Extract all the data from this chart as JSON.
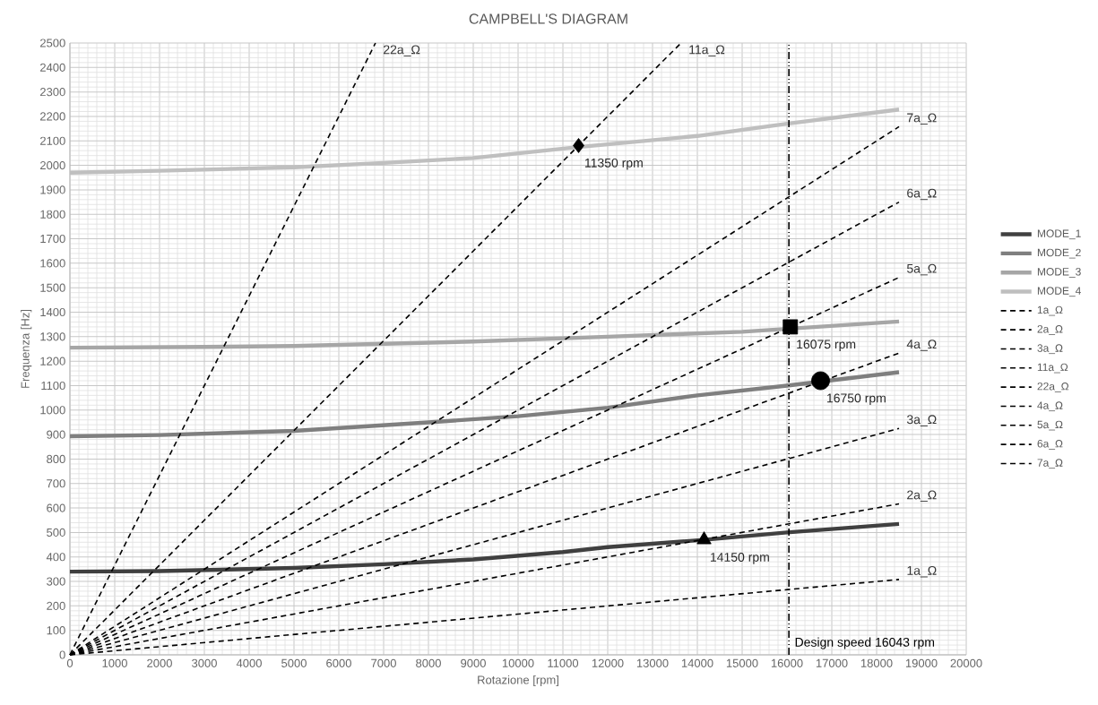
{
  "chart_data": {
    "type": "line",
    "title": "CAMPBELL'S DIAGRAM",
    "xlabel": "Rotazione [rpm]",
    "ylabel": "Frequenza [Hz]",
    "xlim": [
      0,
      20000
    ],
    "ylim": [
      0,
      2500
    ],
    "xticks": [
      0,
      1000,
      2000,
      3000,
      4000,
      5000,
      6000,
      7000,
      8000,
      9000,
      10000,
      11000,
      12000,
      13000,
      14000,
      15000,
      16000,
      17000,
      18000,
      19000,
      20000
    ],
    "yticks": [
      0,
      100,
      200,
      300,
      400,
      500,
      600,
      700,
      800,
      900,
      1000,
      1100,
      1200,
      1300,
      1400,
      1500,
      1600,
      1700,
      1800,
      1900,
      2000,
      2100,
      2200,
      2300,
      2400,
      2500
    ],
    "grid": true,
    "legend": "right",
    "series": [
      {
        "name": "MODE_1",
        "color": "#404040",
        "line_style": "solid",
        "x": [
          0,
          2000,
          5000,
          7000,
          9000,
          11000,
          12000,
          14150,
          16000,
          18500
        ],
        "values": [
          340,
          342,
          355,
          370,
          390,
          420,
          440,
          470,
          500,
          535
        ]
      },
      {
        "name": "MODE_2",
        "color": "#7f7f7f",
        "line_style": "solid",
        "x": [
          0,
          2000,
          5000,
          8000,
          10000,
          12000,
          14000,
          16000,
          18500
        ],
        "values": [
          893,
          898,
          915,
          950,
          975,
          1010,
          1060,
          1100,
          1155
        ]
      },
      {
        "name": "MODE_3",
        "color": "#a6a6a6",
        "line_style": "solid",
        "x": [
          0,
          3000,
          5000,
          9000,
          12000,
          15000,
          18500
        ],
        "values": [
          1255,
          1258,
          1262,
          1280,
          1300,
          1320,
          1362
        ]
      },
      {
        "name": "MODE_4",
        "color": "#bfbfbf",
        "line_style": "solid",
        "x": [
          0,
          2000,
          5000,
          7000,
          9000,
          11350,
          14000,
          16000,
          18500
        ],
        "values": [
          1970,
          1978,
          1992,
          2010,
          2030,
          2075,
          2120,
          2170,
          2228
        ]
      },
      {
        "name": "1a_Ω",
        "color": "#000000",
        "line_style": "dashed",
        "x": [
          0,
          18500
        ],
        "values": [
          0,
          308
        ]
      },
      {
        "name": "2a_Ω",
        "color": "#000000",
        "line_style": "dashed",
        "x": [
          0,
          18500
        ],
        "values": [
          0,
          617
        ]
      },
      {
        "name": "3a_Ω",
        "color": "#000000",
        "line_style": "dashed",
        "x": [
          0,
          18500
        ],
        "values": [
          0,
          925
        ]
      },
      {
        "name": "11a_Ω",
        "color": "#000000",
        "line_style": "dashed",
        "x": [
          0,
          13636
        ],
        "values": [
          0,
          2500
        ]
      },
      {
        "name": "22a_Ω",
        "color": "#000000",
        "line_style": "dashed",
        "x": [
          0,
          6818
        ],
        "values": [
          0,
          2500
        ]
      },
      {
        "name": "4a_Ω",
        "color": "#000000",
        "line_style": "dashed",
        "x": [
          0,
          18500
        ],
        "values": [
          0,
          1233
        ]
      },
      {
        "name": "5a_Ω",
        "color": "#000000",
        "line_style": "dashed",
        "x": [
          0,
          18500
        ],
        "values": [
          0,
          1542
        ]
      },
      {
        "name": "6a_Ω",
        "color": "#000000",
        "line_style": "dashed",
        "x": [
          0,
          18500
        ],
        "values": [
          0,
          1850
        ]
      },
      {
        "name": "7a_Ω",
        "color": "#000000",
        "line_style": "dashed",
        "x": [
          0,
          18500
        ],
        "values": [
          0,
          2158
        ]
      },
      {
        "type": "scatter",
        "marker": "diamond",
        "color": "#000000",
        "x": [
          11350
        ],
        "values": [
          2081
        ]
      },
      {
        "type": "scatter",
        "marker": "square",
        "color": "#000000",
        "x": [
          16075
        ],
        "values": [
          1340
        ]
      },
      {
        "type": "scatter",
        "marker": "circle",
        "color": "#000000",
        "x": [
          16750
        ],
        "values": [
          1120
        ]
      },
      {
        "type": "scatter",
        "marker": "triangle",
        "color": "#000000",
        "x": [
          14150
        ],
        "values": [
          470
        ]
      }
    ],
    "ref_lines": [
      {
        "axis": "x",
        "value": 16043,
        "label": "Design speed 16043 rpm",
        "color": "#000000",
        "line_style": "dashdotdotted"
      }
    ],
    "annotations": [
      {
        "text": "11350 rpm",
        "x": 11350,
        "y": 2081
      },
      {
        "text": "16075 rpm",
        "x": 16075,
        "y": 1340
      },
      {
        "text": "16750 rpm",
        "x": 16750,
        "y": 1120
      },
      {
        "text": "14150 rpm",
        "x": 14150,
        "y": 470
      }
    ]
  }
}
